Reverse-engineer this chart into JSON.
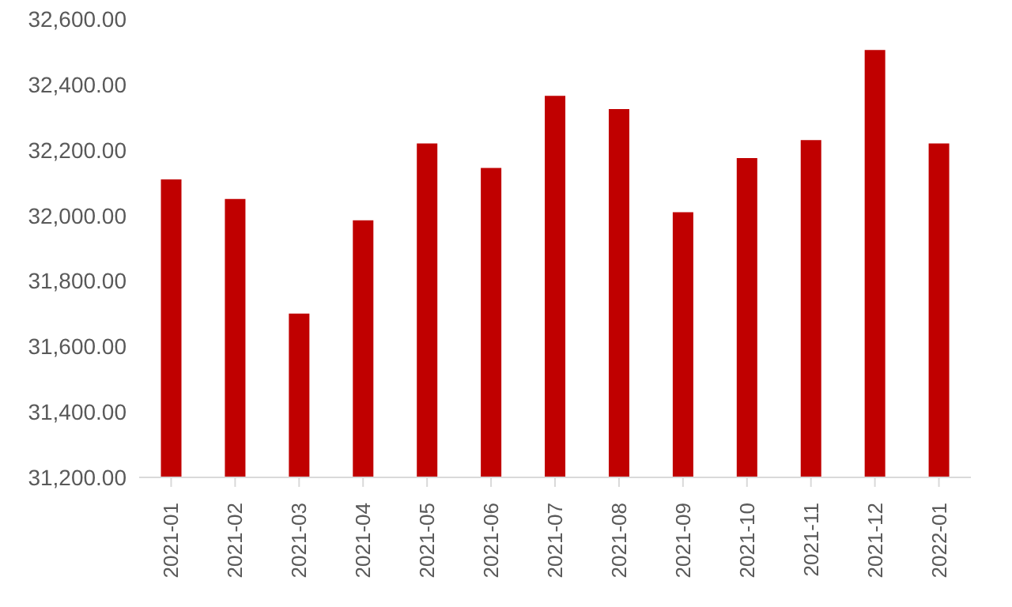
{
  "chart_data": {
    "type": "bar",
    "categories": [
      "2021-01",
      "2021-02",
      "2021-03",
      "2021-04",
      "2021-05",
      "2021-06",
      "2021-07",
      "2021-08",
      "2021-09",
      "2021-10",
      "2021-11",
      "2021-12",
      "2022-01"
    ],
    "values": [
      32110,
      32050,
      31700,
      31985,
      32220,
      32145,
      32365,
      32325,
      32010,
      32175,
      32230,
      32505,
      32220
    ],
    "color": "#c00000",
    "ylim": [
      31200,
      32600
    ],
    "yticks": [
      {
        "value": 31200,
        "label": "31,200.00"
      },
      {
        "value": 31400,
        "label": "31,400.00"
      },
      {
        "value": 31600,
        "label": "31,600.00"
      },
      {
        "value": 31800,
        "label": "31,800.00"
      },
      {
        "value": 32000,
        "label": "32,000.00"
      },
      {
        "value": 32200,
        "label": "32,200.00"
      },
      {
        "value": 32400,
        "label": "32,400.00"
      },
      {
        "value": 32600,
        "label": "32,600.00"
      }
    ],
    "grid": false,
    "legend": false
  }
}
